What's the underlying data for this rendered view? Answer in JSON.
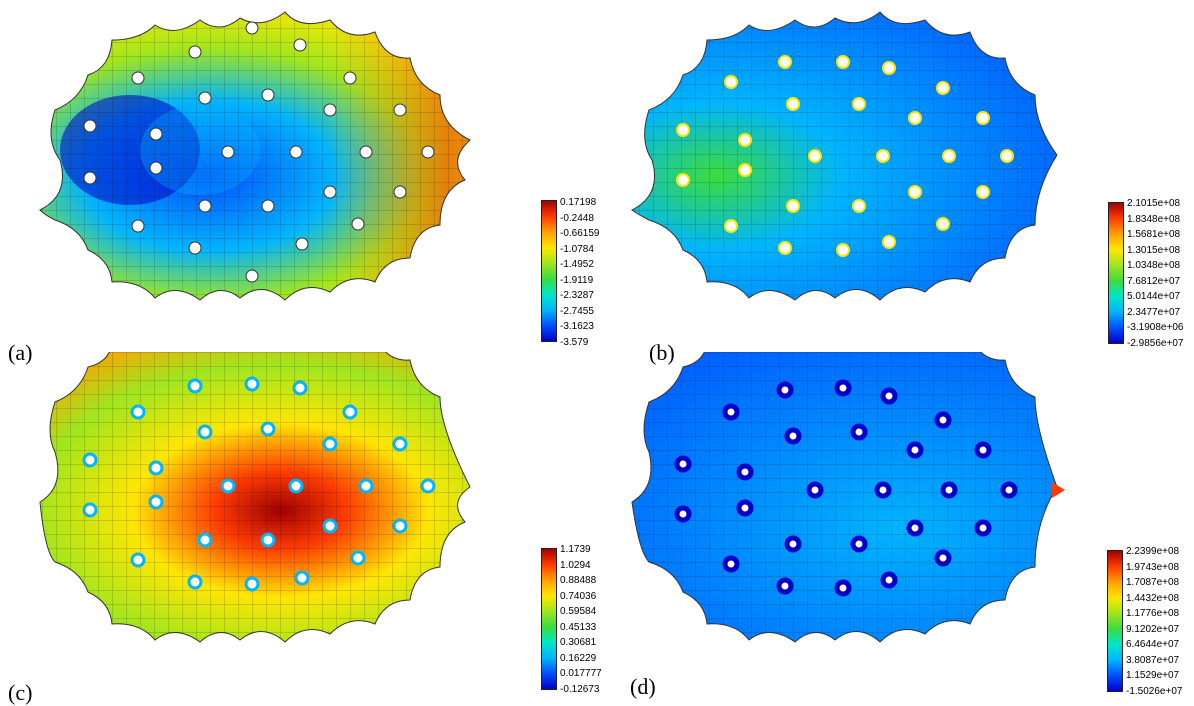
{
  "panels": [
    {
      "label": "(a)",
      "colorbar": [
        "0.17198",
        "-0.2448",
        "-0.66159",
        "-1.0784",
        "-1.4952",
        "-1.9119",
        "-2.3287",
        "-2.7455",
        "-3.1623",
        "-3.579"
      ]
    },
    {
      "label": "(b)",
      "colorbar": [
        "2.1015e+08",
        "1.8348e+08",
        "1.5681e+08",
        "1.3015e+08",
        "1.0348e+08",
        "7.6812e+07",
        "5.0144e+07",
        "2.3477e+07",
        "-3.1908e+06",
        "-2.9856e+07"
      ]
    },
    {
      "label": "(c)",
      "colorbar": [
        "1.1739",
        "1.0294",
        "0.88488",
        "0.74036",
        "0.59584",
        "0.45133",
        "0.30681",
        "0.16229",
        "0.017777",
        "-0.12673"
      ]
    },
    {
      "label": "(d)",
      "colorbar": [
        "2.2399e+08",
        "1.9743e+08",
        "1.7087e+08",
        "1.4432e+08",
        "1.1776e+08",
        "9.1202e+07",
        "6.4644e+07",
        "3.8087e+07",
        "1.1529e+07",
        "-1.5026e+07"
      ]
    }
  ],
  "colormap": [
    "#0000c8",
    "#0050ff",
    "#00b4ff",
    "#00e6c8",
    "#3cdc3c",
    "#a0e61e",
    "#ffe600",
    "#ffa000",
    "#ff3c00",
    "#a00000"
  ]
}
